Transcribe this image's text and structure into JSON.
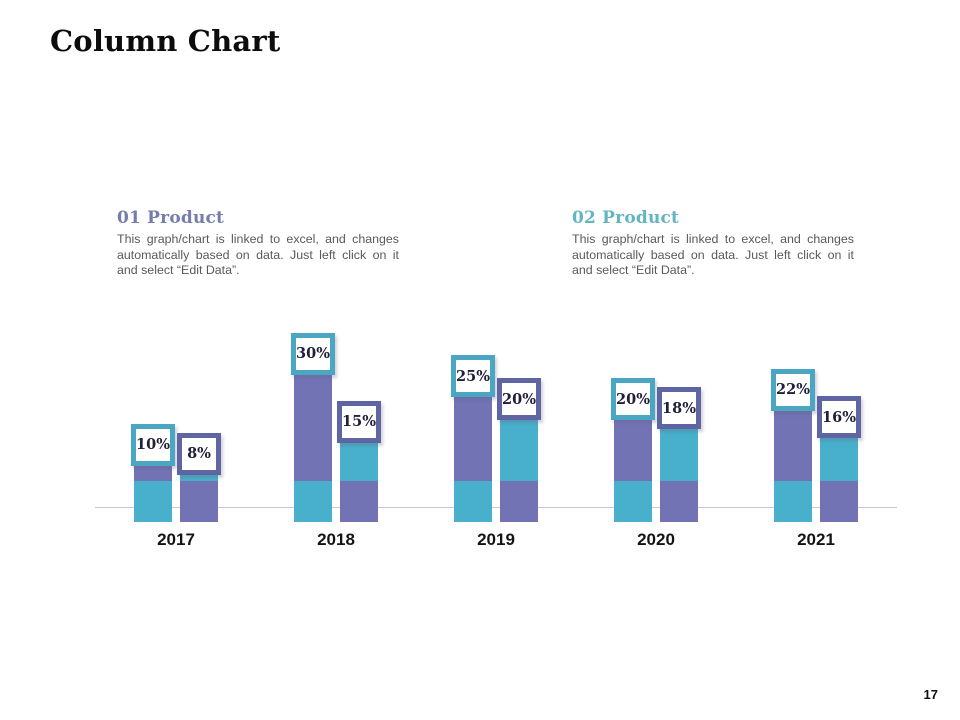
{
  "page": {
    "title": "Column Chart",
    "page_number": "17"
  },
  "products": [
    {
      "heading": "01 Product",
      "description": "This graph/chart is linked to excel, and changes automatically based on data. Just left click on it and select “Edit Data”.",
      "accent_color": "#767cad"
    },
    {
      "heading": "02 Product",
      "description": "This graph/chart is linked to excel, and changes automatically based on data. Just left click on it and select “Edit Data”.",
      "accent_color": "#63b5bf"
    }
  ],
  "chart_data": {
    "type": "bar",
    "title": "Column Chart",
    "categories": [
      "2017",
      "2018",
      "2019",
      "2020",
      "2021"
    ],
    "series": [
      {
        "name": "Product 01",
        "color": "#7173b5",
        "base_color": "#48b0cc",
        "label_border_color": "#4aa6c2",
        "values": [
          10,
          30,
          25,
          20,
          22
        ]
      },
      {
        "name": "Product 02",
        "color": "#48b0cc",
        "base_color": "#7173b5",
        "label_border_color": "#5f64a2",
        "values": [
          8,
          15,
          20,
          18,
          16
        ]
      }
    ],
    "value_suffix": "%",
    "data_labels": [
      "10%",
      "8%",
      "30%",
      "15%",
      "25%",
      "20%",
      "20%",
      "18%",
      "22%",
      "16%"
    ],
    "xlabel": "",
    "ylabel": "",
    "ylim": [
      0,
      35
    ],
    "grid": false,
    "legend_position": "none",
    "axis_line_color": "#c9c9c9"
  }
}
